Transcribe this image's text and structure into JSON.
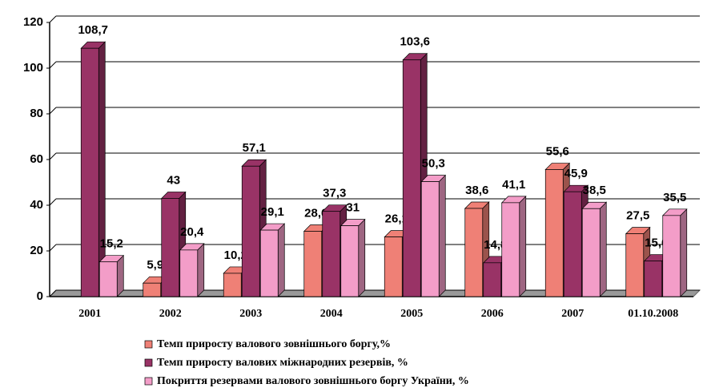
{
  "chart_data": {
    "type": "bar",
    "categories": [
      "2001",
      "2002",
      "2003",
      "2004",
      "2005",
      "2006",
      "2007",
      "01.10.2008"
    ],
    "series": [
      {
        "name": "Темп приросту валового зовнішнього боргу,%",
        "color": "#ef8076",
        "values": [
          null,
          5.9,
          10.2,
          28.6,
          26.1,
          38.6,
          55.6,
          27.5
        ],
        "value_labels": [
          null,
          "5,9",
          "10,2",
          "28,6",
          "26,1",
          "38,6",
          "55,6",
          "27,5"
        ]
      },
      {
        "name": "Темп приросту валових міжнародних резервів, %",
        "color": "#993366",
        "values": [
          108.7,
          43,
          57.1,
          37.3,
          103.6,
          14.8,
          45.9,
          15.6
        ],
        "value_labels": [
          "108,7",
          "43",
          "57,1",
          "37,3",
          "103,6",
          "14,8",
          "45,9",
          "15,6"
        ]
      },
      {
        "name": "Покриття резервами валового зовнішнього боргу України, %",
        "color": "#f39dc8",
        "values": [
          15.2,
          20.4,
          29.1,
          31,
          50.3,
          41.1,
          38.5,
          35.5
        ],
        "value_labels": [
          "15,2",
          "20,4",
          "29,1",
          "31",
          "50,3",
          "41,1",
          "38,5",
          "35,5"
        ]
      }
    ],
    "ylim": [
      0,
      120
    ],
    "yticks": [
      0,
      20,
      40,
      60,
      80,
      100,
      120
    ],
    "grid": true
  }
}
